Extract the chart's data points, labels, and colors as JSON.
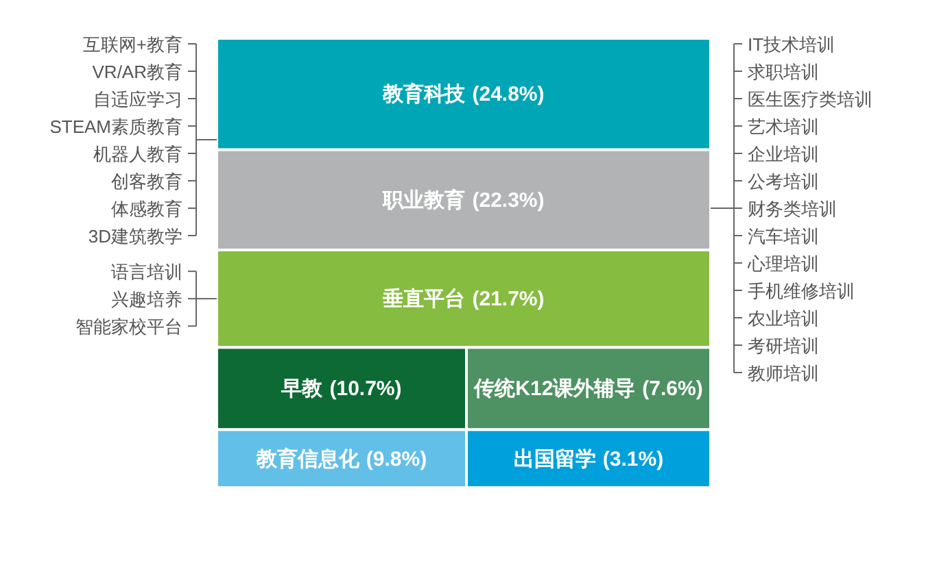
{
  "chart_data": {
    "type": "other",
    "categories": [
      "教育科技",
      "职业教育",
      "垂直平台",
      "早教",
      "传统K12课外辅导",
      "教育信息化",
      "出国留学"
    ],
    "values": [
      24.8,
      22.3,
      21.7,
      10.7,
      7.6,
      9.8,
      3.1
    ],
    "colors": [
      "#00a6b5",
      "#b1b3b4",
      "#86bc40",
      "#0d6a35",
      "#4e9162",
      "#62bfe8",
      "#00a0dc"
    ],
    "value_labels": [
      "(24.8%)",
      "(22.3%)",
      "(21.7%)",
      "(10.7%)",
      "(7.6%)",
      "(9.8%)",
      "(3.1%)"
    ],
    "annotations": [
      {
        "text": "互联网+教育",
        "x": "教育科技"
      },
      {
        "text": "VR/AR教育",
        "x": "教育科技"
      },
      {
        "text": "自适应学习",
        "x": "教育科技"
      },
      {
        "text": "STEAM素质教育",
        "x": "教育科技"
      },
      {
        "text": "机器人教育",
        "x": "教育科技"
      },
      {
        "text": "创客教育",
        "x": "教育科技"
      },
      {
        "text": "体感教育",
        "x": "教育科技"
      },
      {
        "text": "3D建筑教学",
        "x": "教育科技"
      },
      {
        "text": "语言培训",
        "x": "垂直平台"
      },
      {
        "text": "兴趣培养",
        "x": "垂直平台"
      },
      {
        "text": "智能家校平台",
        "x": "垂直平台"
      },
      {
        "text": "IT技术培训",
        "x": "职业教育"
      },
      {
        "text": "求职培训",
        "x": "职业教育"
      },
      {
        "text": "医生医疗类培训",
        "x": "职业教育"
      },
      {
        "text": "艺术培训",
        "x": "职业教育"
      },
      {
        "text": "企业培训",
        "x": "职业教育"
      },
      {
        "text": "公考培训",
        "x": "职业教育"
      },
      {
        "text": "财务类培训",
        "x": "职业教育"
      },
      {
        "text": "汽车培训",
        "x": "职业教育"
      },
      {
        "text": "心理培训",
        "x": "职业教育"
      },
      {
        "text": "手机维修培训",
        "x": "职业教育"
      },
      {
        "text": "农业培训",
        "x": "职业教育"
      },
      {
        "text": "考研培训",
        "x": "职业教育"
      },
      {
        "text": "教师培训",
        "x": "职业教育"
      }
    ]
  }
}
